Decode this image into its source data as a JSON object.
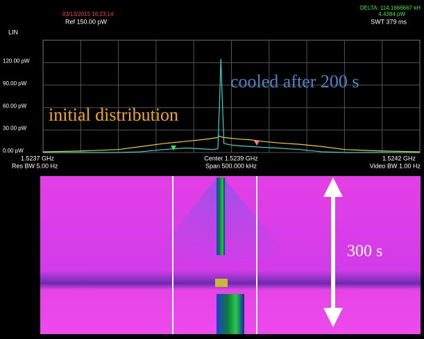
{
  "header": {
    "timestamp": "03/13/2015 16:23:14",
    "ref": "Ref 150.00 pW",
    "scale": "LIN",
    "delta": "DELTA: 114.1666667 kH",
    "delta_level": "4.4384 pW",
    "sweep": "SWT 379 ms"
  },
  "chart_data": {
    "type": "line",
    "x": [
      -250,
      -200,
      -150,
      -120,
      -90,
      -60,
      -40,
      -25,
      -18,
      -16,
      -14,
      -10,
      0,
      10,
      25,
      40,
      60,
      90,
      120,
      150,
      200,
      250
    ],
    "xlim": [
      -250,
      250
    ],
    "series": [
      {
        "name": "initial distribution",
        "color": "#f2d21b",
        "values": [
          1,
          2,
          4,
          8,
          12,
          15,
          17,
          19,
          20,
          22,
          21,
          20,
          19,
          18,
          17,
          15,
          13,
          11,
          8,
          4,
          2,
          1
        ]
      },
      {
        "name": "cooled after 200 s",
        "color": "#35d6d6",
        "values": [
          0,
          0,
          0,
          1,
          4,
          6,
          5,
          4,
          5,
          60,
          125,
          12,
          10,
          9,
          8,
          7,
          6,
          4,
          1,
          0,
          0,
          0
        ]
      }
    ],
    "ylim": [
      0,
      150
    ],
    "yticks": [
      {
        "value": 0,
        "label": "0.00 pW"
      },
      {
        "value": 30,
        "label": "30.00 pW"
      },
      {
        "value": 60,
        "label": "60.00 pW"
      },
      {
        "value": 90,
        "label": "90.00 pW"
      },
      {
        "value": 120,
        "label": "120.00 pW"
      }
    ],
    "grid": true,
    "x_labels": {
      "left": "1.5237 GHz",
      "center": "Center 1.5239 GHz",
      "right": "1.5242 GHz",
      "res_bw": "Res BW 5.00  Hz",
      "span": "Span 500.000 kHz",
      "video_bw": "Video BW 1.00  Hz"
    },
    "annotations": {
      "initial": "initial distribution",
      "cooled": "cooled after 200 s"
    }
  },
  "waterfall": {
    "duration": "300 s"
  }
}
